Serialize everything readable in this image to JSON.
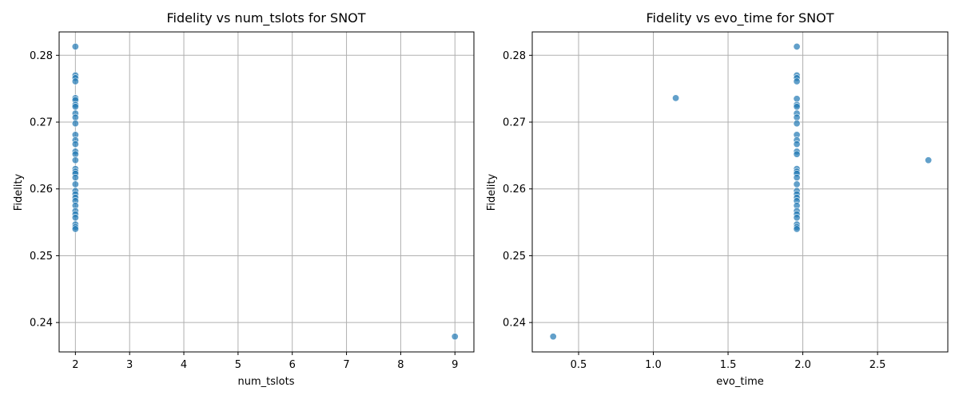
{
  "chart_data": [
    {
      "type": "scatter",
      "title": "Fidelity vs num_tslots for SNOT",
      "xlabel": "num_tslots",
      "ylabel": "Fidelity",
      "xlim": [
        1.7,
        9.35
      ],
      "ylim": [
        0.2356,
        0.2835
      ],
      "xticks": [
        2,
        3,
        4,
        5,
        6,
        7,
        8,
        9
      ],
      "xtick_labels": [
        "2",
        "3",
        "4",
        "5",
        "6",
        "7",
        "8",
        "9"
      ],
      "yticks": [
        0.24,
        0.25,
        0.26,
        0.27,
        0.28
      ],
      "ytick_labels": [
        "0.24",
        "0.25",
        "0.26",
        "0.27",
        "0.28"
      ],
      "grid": true,
      "color": "#1f77b4",
      "points": [
        [
          2,
          0.2813
        ],
        [
          2,
          0.277
        ],
        [
          2,
          0.2766
        ],
        [
          2,
          0.2761
        ],
        [
          2,
          0.2736
        ],
        [
          2,
          0.2733
        ],
        [
          2,
          0.2726
        ],
        [
          2,
          0.2723
        ],
        [
          2,
          0.2713
        ],
        [
          2,
          0.2707
        ],
        [
          2,
          0.2698
        ],
        [
          2,
          0.2681
        ],
        [
          2,
          0.2673
        ],
        [
          2,
          0.2667
        ],
        [
          2,
          0.2656
        ],
        [
          2,
          0.2652
        ],
        [
          2,
          0.2643
        ],
        [
          2,
          0.263
        ],
        [
          2,
          0.2626
        ],
        [
          2,
          0.2623
        ],
        [
          2,
          0.2617
        ],
        [
          2,
          0.2607
        ],
        [
          2,
          0.2597
        ],
        [
          2,
          0.2592
        ],
        [
          2,
          0.2587
        ],
        [
          2,
          0.2582
        ],
        [
          2,
          0.2575
        ],
        [
          2,
          0.2567
        ],
        [
          2,
          0.2562
        ],
        [
          2,
          0.2557
        ],
        [
          2,
          0.2547
        ],
        [
          2,
          0.2543
        ],
        [
          2,
          0.254
        ],
        [
          9,
          0.2379
        ]
      ]
    },
    {
      "type": "scatter",
      "title": "Fidelity vs evo_time for SNOT",
      "xlabel": "evo_time",
      "ylabel": "Fidelity",
      "xlim": [
        0.19,
        2.97
      ],
      "ylim": [
        0.2356,
        0.2835
      ],
      "xticks": [
        0.5,
        1.0,
        1.5,
        2.0,
        2.5
      ],
      "xtick_labels": [
        "0.5",
        "1.0",
        "1.5",
        "2.0",
        "2.5"
      ],
      "yticks": [
        0.24,
        0.25,
        0.26,
        0.27,
        0.28
      ],
      "ytick_labels": [
        "0.24",
        "0.25",
        "0.26",
        "0.27",
        "0.28"
      ],
      "grid": true,
      "color": "#1f77b4",
      "points": [
        [
          1.96,
          0.2813
        ],
        [
          1.96,
          0.277
        ],
        [
          1.96,
          0.2766
        ],
        [
          1.96,
          0.2761
        ],
        [
          1.96,
          0.2735
        ],
        [
          1.96,
          0.2726
        ],
        [
          1.96,
          0.2723
        ],
        [
          1.96,
          0.2713
        ],
        [
          1.96,
          0.2707
        ],
        [
          1.96,
          0.2698
        ],
        [
          1.96,
          0.2681
        ],
        [
          1.96,
          0.2673
        ],
        [
          1.96,
          0.2667
        ],
        [
          1.96,
          0.2656
        ],
        [
          1.96,
          0.2652
        ],
        [
          1.96,
          0.263
        ],
        [
          1.96,
          0.2626
        ],
        [
          1.96,
          0.2623
        ],
        [
          1.96,
          0.2617
        ],
        [
          1.96,
          0.2607
        ],
        [
          1.96,
          0.2597
        ],
        [
          1.96,
          0.2592
        ],
        [
          1.96,
          0.2587
        ],
        [
          1.96,
          0.2582
        ],
        [
          1.96,
          0.2575
        ],
        [
          1.96,
          0.2567
        ],
        [
          1.96,
          0.2562
        ],
        [
          1.96,
          0.2557
        ],
        [
          1.96,
          0.2547
        ],
        [
          1.96,
          0.2543
        ],
        [
          1.96,
          0.254
        ],
        [
          1.15,
          0.2736
        ],
        [
          2.84,
          0.2643
        ],
        [
          0.33,
          0.2379
        ]
      ]
    }
  ]
}
